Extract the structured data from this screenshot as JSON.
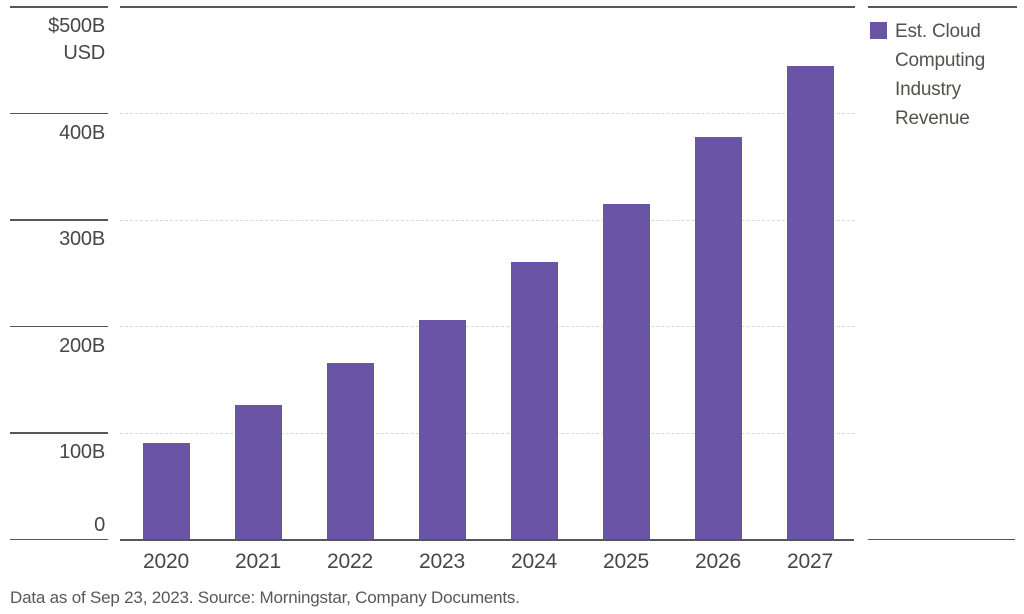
{
  "chart_data": {
    "type": "bar",
    "title": "",
    "categories": [
      "2020",
      "2021",
      "2022",
      "2023",
      "2024",
      "2025",
      "2026",
      "2027"
    ],
    "values": [
      90,
      126,
      165,
      206,
      260,
      315,
      377,
      444
    ],
    "series_name": "Est. Cloud Computing Industry Revenue",
    "unit": "billions USD",
    "xlabel": "",
    "ylabel": "$500B USD scale",
    "ylim": [
      0,
      500
    ],
    "grid": "dashed horizontal gridlines, solid top rule, solid bottom axis",
    "legend_position": "right",
    "y_ticks": [
      {
        "value": 500,
        "label": "$500B",
        "sublabel": "USD",
        "label_position": "below"
      },
      {
        "value": 400,
        "label": "400B",
        "label_position": "below"
      },
      {
        "value": 300,
        "label": "300B",
        "label_position": "below"
      },
      {
        "value": 200,
        "label": "200B",
        "label_position": "below"
      },
      {
        "value": 100,
        "label": "100B",
        "label_position": "below"
      },
      {
        "value": 0,
        "label": "0",
        "label_position": "above"
      }
    ]
  },
  "legend": {
    "label": "Est. Cloud Computing Industry Revenue",
    "swatch_color": "#6A54A5"
  },
  "footer": {
    "note": "Data as of Sep 23, 2023. Source: Morningstar, Company Documents."
  },
  "colors": {
    "bar": "#6A54A5",
    "axis": "#55565A",
    "grid": "#D8D8D8",
    "tick_label": "#47474A",
    "legend_text": "#54524B",
    "footer_text": "#58585A"
  }
}
